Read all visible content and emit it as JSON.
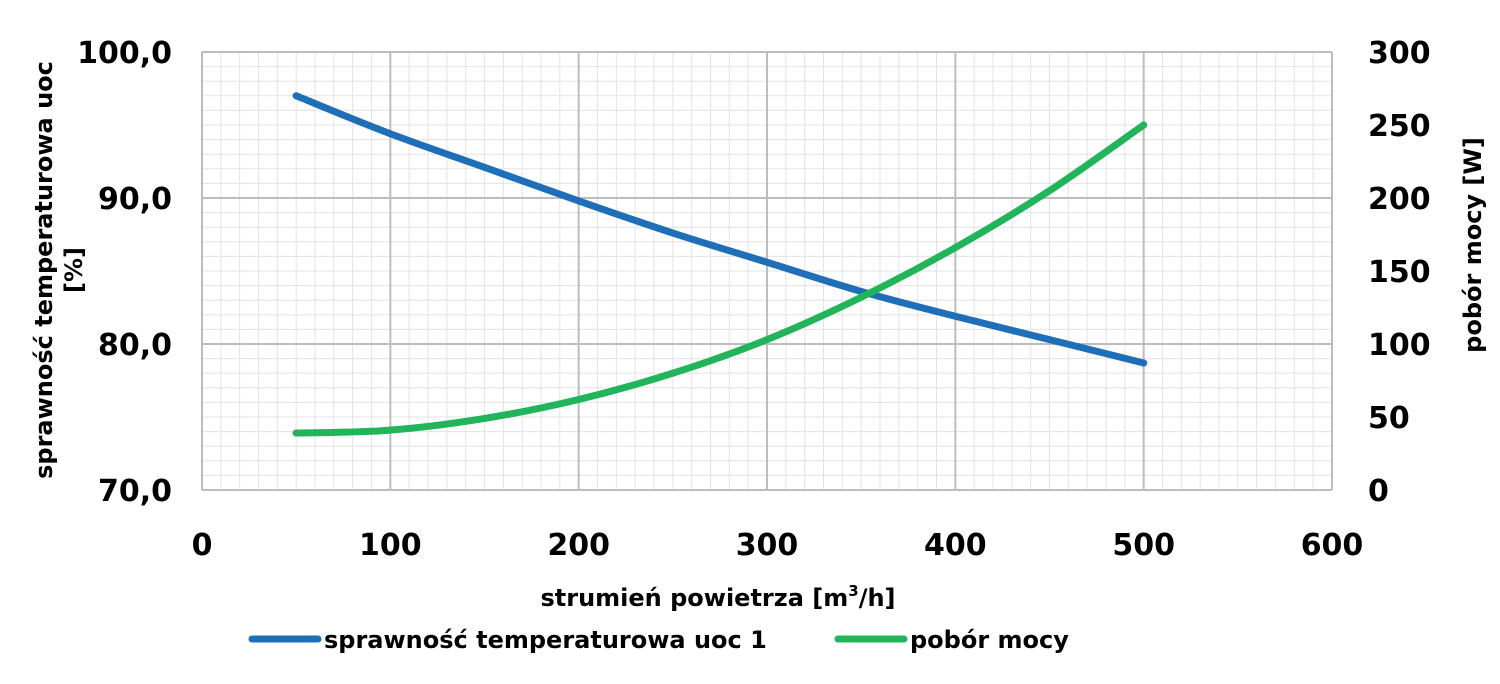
{
  "chart_data": {
    "type": "line",
    "xlabel_parts": [
      "strumień powietrza [m",
      "3",
      "/h]"
    ],
    "ylabel_left_lines": [
      "sprawność temperaturowa uoc",
      "[%]"
    ],
    "ylabel_right": "pobór mocy [W]",
    "xlim": [
      0,
      600
    ],
    "ylim_left": [
      70,
      100
    ],
    "ylim_right": [
      0,
      300
    ],
    "x_ticks": [
      "0",
      "100",
      "200",
      "300",
      "400",
      "500",
      "600"
    ],
    "y_left_ticks": [
      "70,0",
      "80,0",
      "90,0",
      "100,0"
    ],
    "y_right_ticks": [
      "0",
      "50",
      "100",
      "150",
      "200",
      "250",
      "300"
    ],
    "grid": true,
    "legend_position": "bottom",
    "series": [
      {
        "name": "sprawność temperaturowa uoc 1",
        "axis": "left",
        "color": "#1f6fb8",
        "x": [
          50,
          100,
          150,
          200,
          250,
          300,
          350,
          400,
          450,
          500
        ],
        "y": [
          97.0,
          94.4,
          92.1,
          89.8,
          87.6,
          85.6,
          83.6,
          81.9,
          80.3,
          78.7
        ]
      },
      {
        "name": "pobór mocy",
        "axis": "right",
        "color": "#22b45a",
        "x": [
          50,
          100,
          150,
          200,
          250,
          300,
          350,
          400,
          450,
          500
        ],
        "y": [
          39,
          41,
          49,
          62,
          80,
          103,
          132,
          166,
          205,
          250
        ]
      }
    ]
  }
}
